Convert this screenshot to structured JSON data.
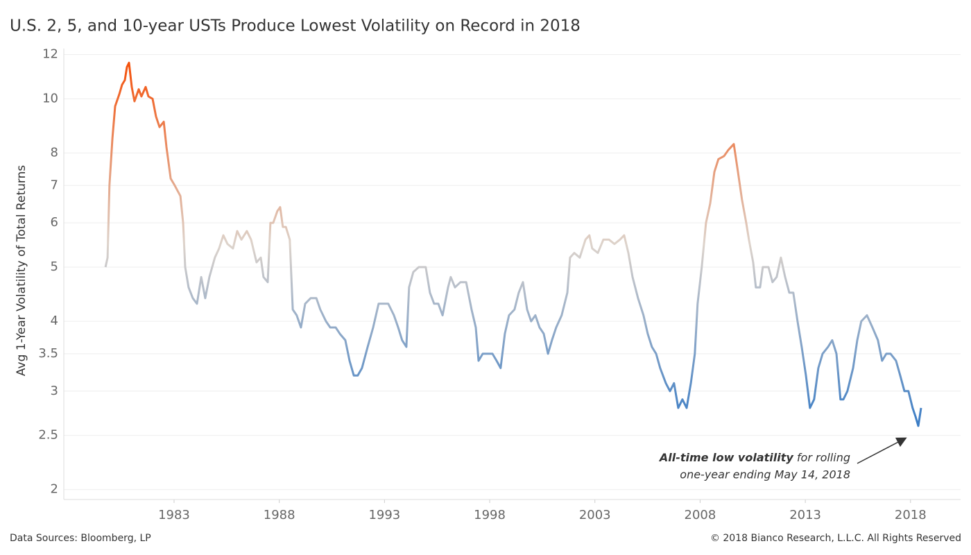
{
  "chart_data": {
    "type": "line",
    "title": "U.S. 2, 5, and 10-year USTs Produce Lowest Volatility on Record in 2018",
    "y_label": "Avg 1-Year Volatility of Total Returns",
    "source": "Data Sources: Bloomberg, LP",
    "copyright": "© 2018 Bianco Research, L.L.C. All Rights Reserved",
    "annotation": {
      "bold": "All-time low  volatility",
      "text": "for rolling",
      "line2": "one-year ending May 14, 2018"
    },
    "log_y": true,
    "grid": true,
    "color_range": [
      "#3a7cc5",
      "#ddd3cb",
      "#f4500a"
    ],
    "xlim": [
      1977.76,
      2020.38
    ],
    "xticks": [
      1983,
      1988,
      1993,
      1998,
      2003,
      2008,
      2013,
      2018
    ],
    "ylim": [
      1.92,
      12.3
    ],
    "yticks": [
      2,
      2.5,
      3,
      3.5,
      4,
      5,
      6,
      7,
      8,
      10,
      12
    ],
    "x": [
      1979.74,
      1979.84,
      1979.93,
      1980.07,
      1980.2,
      1980.4,
      1980.53,
      1980.66,
      1980.76,
      1980.86,
      1980.99,
      1981.12,
      1981.32,
      1981.45,
      1981.65,
      1981.78,
      1981.98,
      1982.14,
      1982.31,
      1982.51,
      1982.64,
      1982.84,
      1983.03,
      1983.3,
      1983.43,
      1983.53,
      1983.69,
      1983.89,
      1984.09,
      1984.29,
      1984.48,
      1984.68,
      1984.94,
      1985.14,
      1985.34,
      1985.54,
      1985.8,
      1986.0,
      1986.2,
      1986.46,
      1986.66,
      1986.92,
      1987.12,
      1987.25,
      1987.45,
      1987.58,
      1987.71,
      1987.91,
      1988.04,
      1988.17,
      1988.31,
      1988.5,
      1988.64,
      1988.83,
      1989.03,
      1989.23,
      1989.49,
      1989.76,
      1989.95,
      1990.22,
      1990.42,
      1990.68,
      1990.88,
      1991.14,
      1991.34,
      1991.54,
      1991.73,
      1991.93,
      1992.2,
      1992.46,
      1992.72,
      1992.92,
      1993.18,
      1993.45,
      1993.65,
      1993.84,
      1994.04,
      1994.17,
      1994.37,
      1994.63,
      1994.96,
      1995.16,
      1995.36,
      1995.56,
      1995.76,
      1996.02,
      1996.15,
      1996.35,
      1996.61,
      1996.88,
      1997.14,
      1997.34,
      1997.47,
      1997.67,
      1997.86,
      1998.13,
      1998.33,
      1998.52,
      1998.72,
      1998.92,
      1999.18,
      1999.38,
      1999.58,
      1999.78,
      1999.97,
      2000.17,
      2000.37,
      2000.57,
      2000.77,
      2000.96,
      2001.16,
      2001.42,
      2001.69,
      2001.82,
      2002.02,
      2002.28,
      2002.55,
      2002.74,
      2002.87,
      2003.14,
      2003.4,
      2003.67,
      2003.93,
      2004.19,
      2004.39,
      2004.59,
      2004.79,
      2005.05,
      2005.31,
      2005.51,
      2005.71,
      2005.91,
      2006.1,
      2006.37,
      2006.57,
      2006.76,
      2006.96,
      2007.16,
      2007.36,
      2007.56,
      2007.75,
      2007.88,
      2008.08,
      2008.28,
      2008.48,
      2008.68,
      2008.87,
      2009.14,
      2009.34,
      2009.6,
      2009.8,
      2009.99,
      2010.19,
      2010.32,
      2010.52,
      2010.65,
      2010.85,
      2010.98,
      2011.25,
      2011.44,
      2011.64,
      2011.84,
      2012.04,
      2012.24,
      2012.43,
      2012.63,
      2012.83,
      2013.03,
      2013.22,
      2013.42,
      2013.62,
      2013.82,
      2014.08,
      2014.28,
      2014.48,
      2014.67,
      2014.81,
      2015.0,
      2015.27,
      2015.47,
      2015.66,
      2015.93,
      2016.19,
      2016.45,
      2016.65,
      2016.85,
      2017.05,
      2017.31,
      2017.51,
      2017.71,
      2017.9,
      2018.1,
      2018.24,
      2018.37,
      2018.5
    ],
    "values": [
      5.0,
      5.2,
      7.0,
      8.5,
      9.7,
      10.2,
      10.6,
      10.8,
      11.4,
      11.6,
      10.5,
      9.9,
      10.4,
      10.1,
      10.5,
      10.1,
      10.0,
      9.3,
      8.9,
      9.1,
      8.2,
      7.2,
      7.0,
      6.7,
      6.0,
      5.0,
      4.6,
      4.4,
      4.3,
      4.8,
      4.4,
      4.8,
      5.2,
      5.4,
      5.7,
      5.5,
      5.4,
      5.8,
      5.6,
      5.8,
      5.6,
      5.1,
      5.2,
      4.8,
      4.7,
      6.0,
      6.0,
      6.3,
      6.4,
      5.9,
      5.9,
      5.6,
      4.2,
      4.1,
      3.9,
      4.3,
      4.4,
      4.4,
      4.2,
      4.0,
      3.9,
      3.9,
      3.8,
      3.7,
      3.4,
      3.2,
      3.2,
      3.3,
      3.6,
      3.9,
      4.3,
      4.3,
      4.3,
      4.1,
      3.9,
      3.7,
      3.6,
      4.6,
      4.9,
      5.0,
      5.0,
      4.5,
      4.3,
      4.3,
      4.1,
      4.6,
      4.8,
      4.6,
      4.7,
      4.7,
      4.2,
      3.9,
      3.4,
      3.5,
      3.5,
      3.5,
      3.4,
      3.3,
      3.8,
      4.1,
      4.2,
      4.5,
      4.7,
      4.2,
      4.0,
      4.1,
      3.9,
      3.8,
      3.5,
      3.7,
      3.9,
      4.1,
      4.5,
      5.2,
      5.3,
      5.2,
      5.6,
      5.7,
      5.4,
      5.3,
      5.6,
      5.6,
      5.5,
      5.6,
      5.7,
      5.3,
      4.8,
      4.4,
      4.1,
      3.8,
      3.6,
      3.5,
      3.3,
      3.1,
      3.0,
      3.1,
      2.8,
      2.9,
      2.8,
      3.1,
      3.5,
      4.3,
      5.0,
      6.0,
      6.5,
      7.4,
      7.8,
      7.9,
      8.1,
      8.3,
      7.4,
      6.6,
      6.0,
      5.6,
      5.1,
      4.6,
      4.6,
      5.0,
      5.0,
      4.7,
      4.8,
      5.2,
      4.8,
      4.5,
      4.5,
      4.0,
      3.6,
      3.2,
      2.8,
      2.9,
      3.3,
      3.5,
      3.6,
      3.7,
      3.5,
      2.9,
      2.9,
      3.0,
      3.3,
      3.7,
      4.0,
      4.1,
      3.9,
      3.7,
      3.4,
      3.5,
      3.5,
      3.4,
      3.2,
      3.0,
      3.0,
      2.8,
      2.7,
      2.6,
      2.8
    ]
  }
}
